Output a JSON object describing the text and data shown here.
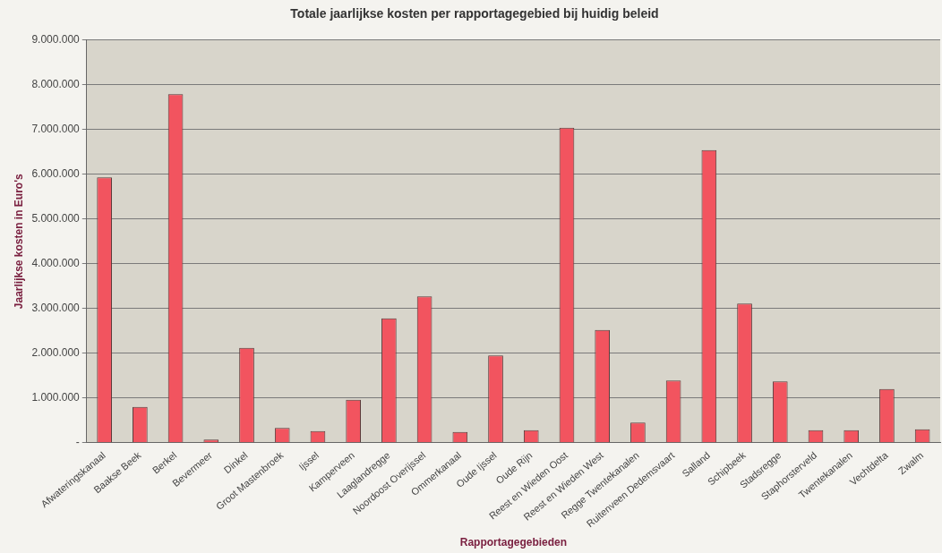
{
  "chart_data": {
    "type": "bar",
    "title": "Totale jaarlijkse kosten per rapportagegebied bij huidig beleid",
    "xlabel": "Rapportagegebieden",
    "ylabel": "Jaarlijkse kosten in Euro's",
    "categories": [
      "Afwateringskanaal",
      "Baakse Beek",
      "Berkel",
      "Bevermeer",
      "Dinkel",
      "Groot Mastenbroek",
      "Ijssel",
      "Kamperveen",
      "Laaglandregge",
      "Noordoost Overijssel",
      "Ommerkanaal",
      "Oude Ijssel",
      "Oude Rijn",
      "Reest en Wieden Oost",
      "Reest en Wieden West",
      "Regge Twentekanalen",
      "Ruitenveen Dedemsvaart",
      "Salland",
      "Schipbeek",
      "Stadsregge",
      "Staphorsterveld",
      "Twentekanalen",
      "Vechtdelta",
      "Zwalm"
    ],
    "values": [
      5930000,
      800000,
      7790000,
      70000,
      2120000,
      330000,
      260000,
      960000,
      2780000,
      3270000,
      240000,
      1950000,
      280000,
      7040000,
      2520000,
      450000,
      1390000,
      6540000,
      3110000,
      1370000,
      280000,
      280000,
      1200000,
      300000
    ],
    "color": "#f2545f",
    "ylim": [
      0,
      9000000
    ],
    "yticks": [
      {
        "value": 0,
        "label": "-"
      },
      {
        "value": 1000000,
        "label": "1.000.000"
      },
      {
        "value": 2000000,
        "label": "2.000.000"
      },
      {
        "value": 3000000,
        "label": "3.000.000"
      },
      {
        "value": 4000000,
        "label": "4.000.000"
      },
      {
        "value": 5000000,
        "label": "5.000.000"
      },
      {
        "value": 6000000,
        "label": "6.000.000"
      },
      {
        "value": 7000000,
        "label": "7.000.000"
      },
      {
        "value": 8000000,
        "label": "8.000.000"
      },
      {
        "value": 9000000,
        "label": "9.000.000"
      }
    ],
    "grid": "y",
    "legend": false
  }
}
